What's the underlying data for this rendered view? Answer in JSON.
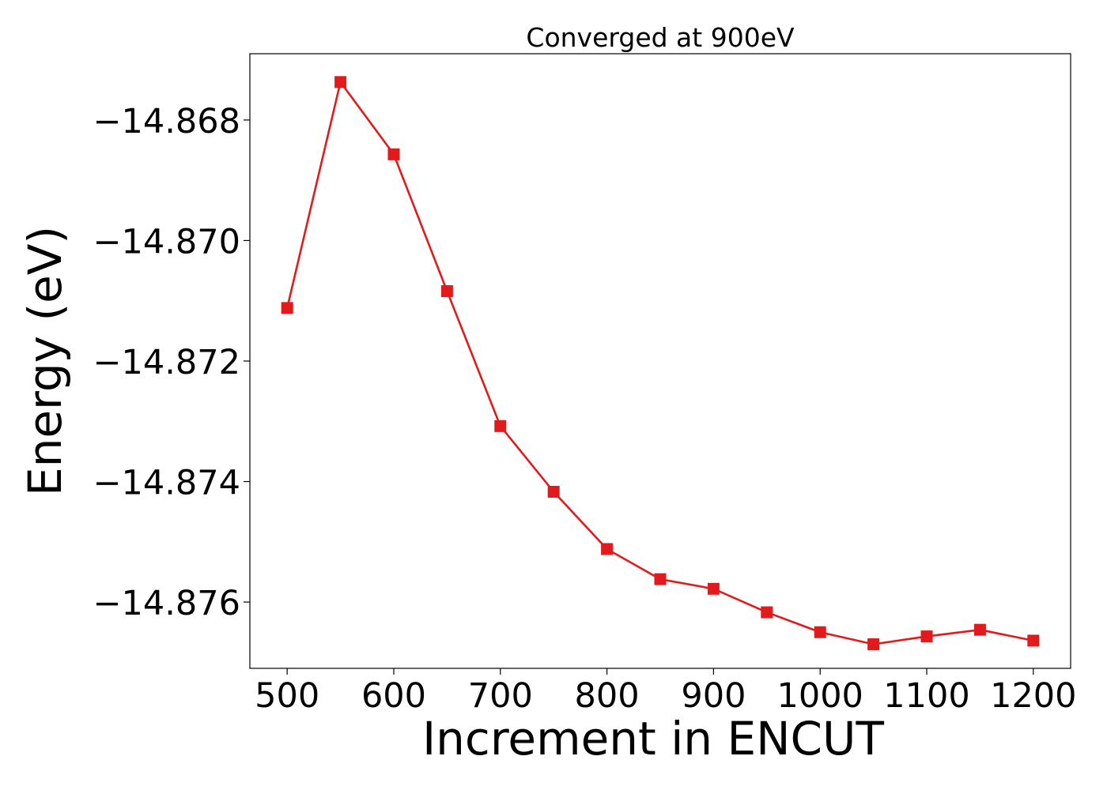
{
  "chart_data": {
    "type": "line",
    "title": "Converged at 900eV",
    "xlabel": "Increment in ENCUT",
    "ylabel": "Energy (eV)",
    "x": [
      500,
      550,
      600,
      650,
      700,
      750,
      800,
      850,
      900,
      950,
      1000,
      1050,
      1100,
      1150,
      1200
    ],
    "series": [
      {
        "values": [
          -14.87112,
          -14.86737,
          -14.86857,
          -14.87084,
          -14.87308,
          -14.87417,
          -14.87512,
          -14.87562,
          -14.87578,
          -14.87617,
          -14.8765,
          -14.8767,
          -14.87657,
          -14.87646,
          -14.87664
        ],
        "color": "#e31a1c",
        "marker": "square"
      }
    ],
    "xticks": [
      500,
      600,
      700,
      800,
      900,
      1000,
      1100,
      1200
    ],
    "xtick_labels": [
      "500",
      "600",
      "700",
      "800",
      "900",
      "1000",
      "1100",
      "1200"
    ],
    "yticks": [
      -14.868,
      -14.87,
      -14.872,
      -14.874,
      -14.876
    ],
    "ytick_labels": [
      "−14.868",
      "−14.870",
      "−14.872",
      "−14.874",
      "−14.876"
    ],
    "xlim": [
      465,
      1235
    ],
    "ylim": [
      -14.8771,
      -14.8669
    ],
    "grid": false,
    "legend": "none"
  }
}
